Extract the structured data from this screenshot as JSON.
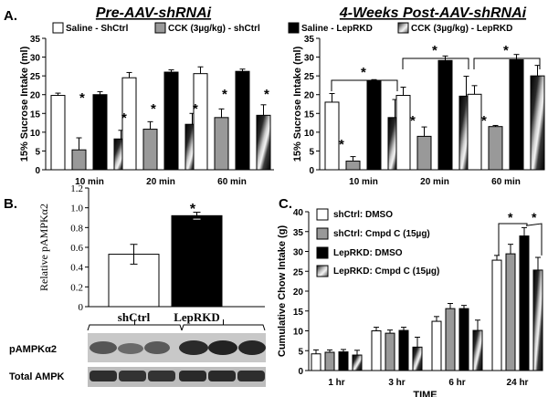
{
  "panel_labels": {
    "a": "A.",
    "b": "B.",
    "c": "C."
  },
  "panel_a": {
    "left_title": "Pre-AAV-shRNAi",
    "right_title": "4-Weeks Post-AAV-shRNAi",
    "legend": {
      "saline_shctrl": "Saline - ShCtrl",
      "cck_shctrl": "CCK (3µg/kg) - shCtrl",
      "saline_leprkd": "Saline - LepRKD",
      "cck_leprkd": "CCK (3µg/kg) - LepRKD"
    }
  },
  "panel_b": {
    "western_labels": {
      "row1": "pAMPKα2",
      "row2": "Total AMPK"
    }
  },
  "panel_c": {},
  "colors": {
    "white_bar": "#ffffff",
    "gray_bar": "#999999",
    "black_bar": "#000000",
    "hatch_dark": "#1a1a1a",
    "hatch_light": "#dddddd"
  },
  "chart_data": [
    {
      "type": "bar",
      "panel": "A-left",
      "title": "Pre-AAV-shRNAi",
      "ylabel": "15% Sucrose Intake (ml)",
      "xlabel": "",
      "categories": [
        "10 min",
        "20 min",
        "60 min"
      ],
      "ylim": [
        0,
        35
      ],
      "yticks": [
        "0",
        "5",
        "10",
        "15",
        "20",
        "25",
        "30",
        "35"
      ],
      "series": [
        {
          "name": "Saline - ShCtrl",
          "values": [
            19.8,
            24.5,
            25.6
          ],
          "errors": [
            0.6,
            1.4,
            1.8
          ]
        },
        {
          "name": "CCK (3µg/kg) - shCtrl",
          "values": [
            5.3,
            10.8,
            13.9
          ],
          "errors": [
            3.2,
            2.0,
            2.3
          ]
        },
        {
          "name": "Saline - LepRKD",
          "values": [
            20.0,
            26.0,
            26.2
          ],
          "errors": [
            0.8,
            0.6,
            0.6
          ]
        },
        {
          "name": "CCK (3µg/kg) - LepRKD",
          "values": [
            8.2,
            12.1,
            14.5
          ],
          "errors": [
            2.3,
            2.9,
            2.8
          ]
        }
      ],
      "annotations": {
        "significance": [
          "*",
          "*",
          "*",
          "*",
          "*",
          "*"
        ]
      }
    },
    {
      "type": "bar",
      "panel": "A-right",
      "title": "4-Weeks Post-AAV-shRNAi",
      "ylabel": "15% Sucrose Intake (ml)",
      "xlabel": "",
      "categories": [
        "10 min",
        "20 min",
        "60 min"
      ],
      "ylim": [
        0,
        35
      ],
      "yticks": [
        "0",
        "5",
        "10",
        "15",
        "20",
        "25",
        "30",
        "35"
      ],
      "series": [
        {
          "name": "Saline - ShCtrl",
          "values": [
            18.0,
            19.8,
            20.1
          ],
          "errors": [
            2.3,
            2.2,
            2.3
          ]
        },
        {
          "name": "CCK (3µg/kg) - shCtrl",
          "values": [
            2.3,
            8.9,
            11.5
          ],
          "errors": [
            1.2,
            2.5,
            0.3
          ]
        },
        {
          "name": "Saline - LepRKD",
          "values": [
            23.8,
            29.1,
            29.3
          ],
          "errors": [
            0.2,
            1.2,
            1.4
          ]
        },
        {
          "name": "CCK (3µg/kg) - LepRKD",
          "values": [
            13.9,
            19.6,
            25.0
          ],
          "errors": [
            4.8,
            5.3,
            2.8
          ]
        }
      ],
      "annotations": {
        "significance": [
          "*",
          "*",
          "*",
          "*",
          "*",
          "*"
        ]
      }
    },
    {
      "type": "bar",
      "panel": "B",
      "ylabel": "Relative pAMPKα2",
      "xlabel": "",
      "categories": [
        "shCtrl",
        "LepRKD"
      ],
      "ylim": [
        0,
        1.2
      ],
      "yticks": [
        "0",
        "0.2",
        "0.4",
        "0.6",
        "0.8",
        "1.0",
        "1.2"
      ],
      "series": [
        {
          "values": [
            0.53,
            0.92
          ],
          "errors": [
            0.1,
            0.035
          ]
        }
      ],
      "annotations": {
        "significance": [
          "*"
        ]
      }
    },
    {
      "type": "bar",
      "panel": "C",
      "ylabel": "Cumulative Chow Intake (g)",
      "xlabel": "TIME",
      "categories": [
        "1 hr",
        "3 hr",
        "6 hr",
        "24 hr"
      ],
      "ylim": [
        0,
        40
      ],
      "yticks": [
        "0",
        "5",
        "10",
        "15",
        "20",
        "25",
        "30",
        "35",
        "40"
      ],
      "legend": [
        "shCtrl: DMSO",
        "shCtrl: Cmpd C (15µg)",
        "LepRKD: DMSO",
        "LepRKD: Cmpd C (15µg)"
      ],
      "series": [
        {
          "name": "shCtrl: DMSO",
          "values": [
            4.2,
            10.0,
            12.4,
            27.8
          ],
          "errors": [
            1.0,
            0.9,
            1.2,
            1.2
          ]
        },
        {
          "name": "shCtrl: Cmpd C (15µg)",
          "values": [
            4.6,
            9.4,
            15.6,
            29.4
          ],
          "errors": [
            0.6,
            0.8,
            1.3,
            2.4
          ]
        },
        {
          "name": "LepRKD: DMSO",
          "values": [
            4.7,
            10.1,
            15.6,
            33.9
          ],
          "errors": [
            0.6,
            0.8,
            0.8,
            2.1
          ]
        },
        {
          "name": "LepRKD: Cmpd C (15µg)",
          "values": [
            3.9,
            5.9,
            10.1,
            25.3
          ],
          "errors": [
            1.2,
            2.5,
            2.6,
            3.2
          ]
        }
      ],
      "annotations": {
        "significance": [
          "*",
          "*"
        ]
      }
    }
  ]
}
